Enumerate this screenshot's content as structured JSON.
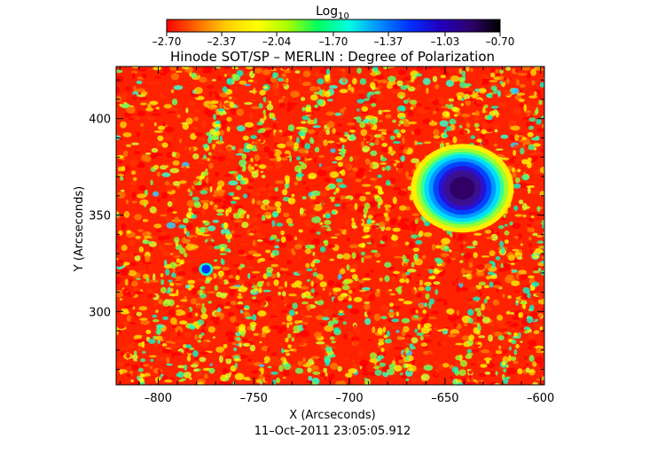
{
  "chart_data": {
    "type": "heatmap",
    "title": "Hinode SOT/SP – MERLIN : Degree of Polarization",
    "colorbar": {
      "label": "Log",
      "label_subscript": "10",
      "ticks": [
        "-2.70",
        "-2.37",
        "-2.04",
        "-1.70",
        "-1.37",
        "-1.03",
        "-0.70"
      ],
      "range": [
        -2.7,
        -0.7
      ],
      "colors": [
        "#ff0000",
        "#ff6a00",
        "#ffd000",
        "#ffff00",
        "#a8ff00",
        "#00ff60",
        "#00ffe0",
        "#0090ff",
        "#0030ff",
        "#2000c0",
        "#300070",
        "#000000"
      ]
    },
    "xlabel": "X (Arcseconds)",
    "ylabel": "Y (Arcseconds)",
    "xlim": [
      -822,
      -598
    ],
    "ylim": [
      262,
      427
    ],
    "xticks": [
      -800,
      -750,
      -700,
      -650,
      -600
    ],
    "yticks": [
      300,
      350,
      400
    ],
    "xtick_labels": [
      "–800",
      "–750",
      "–700",
      "–650",
      "–600"
    ],
    "ytick_labels": [
      "300",
      "350",
      "400"
    ],
    "features": {
      "sunspot_center": [
        -640,
        363
      ],
      "pore": [
        -775,
        322
      ]
    },
    "timestamp": "11–Oct–2011 23:05:05.912"
  }
}
